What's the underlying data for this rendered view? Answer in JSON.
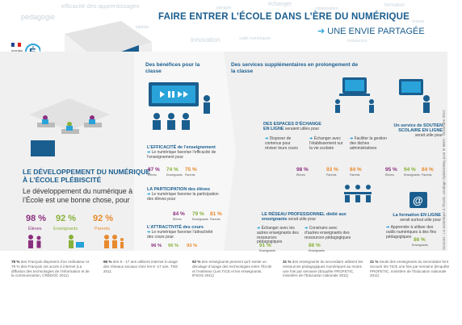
{
  "cloud_words": [
    "pédagogie",
    "efficacité des apprentissages",
    "échanger",
    "partager",
    "formation",
    "innovation",
    "outils numériques",
    "tablette",
    "réseau",
    "collaboration",
    "projets",
    "ressources"
  ],
  "header": {
    "title": "FAIRE ENTRER L’ÉCOLE DANS L’ÈRE DU NUMÉRIQUE",
    "subtitle": "UNE ENVIE PARTAGÉE",
    "logo_text": "MINISTÈRE ÉDUCATION NATIONALE"
  },
  "left": {
    "title_line1": "LE DÉVELOPPEMENT DU NUMÉRIQUE",
    "title_line2": "À L’ÉCOLE PLÉBISCITÉ",
    "subtitle": "Le développement du numérique à l’École est une bonne chose, pour",
    "stats": [
      {
        "value": "98 %",
        "label": "Élèves"
      },
      {
        "value": "92 %",
        "label": "Enseignants"
      },
      {
        "value": "92 %",
        "label": "Parents"
      }
    ]
  },
  "benefits": {
    "title": "Des bénéfices pour la classe",
    "efficacy": {
      "heading": "L’EFFICACITÉ de l’enseignement",
      "text": "Le numérique favorise l’efficacité de l’enseignement pour",
      "stats": [
        {
          "value": "87 %",
          "label": "Élèves"
        },
        {
          "value": "74 %",
          "label": "Enseignants"
        },
        {
          "value": "75 %",
          "label": "Parents"
        }
      ]
    },
    "participation": {
      "heading": "LA PARTICIPATION des élèves",
      "text": "Le numérique favorise la participation des élèves pour",
      "stats": [
        {
          "value": "84 %",
          "label": "Élèves"
        },
        {
          "value": "79 %",
          "label": "Enseignants"
        },
        {
          "value": "81 %",
          "label": "Parents"
        }
      ]
    },
    "attractivity": {
      "heading": "L’ATTRACTIVITÉ des cours",
      "text": "Le numérique favorise l’attractivité des cours pour",
      "stats": [
        {
          "value": "96 %",
          "label": "Élèves"
        },
        {
          "value": "95 %",
          "label": "Enseignants"
        },
        {
          "value": "93 %",
          "label": "Parents"
        }
      ]
    }
  },
  "services": {
    "title": "Des services supplémentaires en prolongement de la classe",
    "exchange": {
      "heading": "DES ESPACES D’ÉCHANGE EN LIGNE",
      "intro": "seraient utiles pour",
      "items": [
        {
          "text": "Disposer de contenus pour réviser leurs cours",
          "value": "98 %",
          "label": "Élèves"
        },
        {
          "text": "Échanger avec l’établissement sur la vie scolaire",
          "value": "93 %",
          "label": "Parents"
        },
        {
          "text": "Faciliter la gestion des tâches administratives",
          "value": "84 %",
          "label": "Parents"
        }
      ]
    },
    "tutoring": {
      "heading": "Un service de SOUTIEN SCOLAIRE EN LIGNE",
      "intro": "serait utile pour",
      "stats": [
        {
          "value": "95 %",
          "label": "Élèves"
        },
        {
          "value": "94 %",
          "label": "Enseignants"
        },
        {
          "value": "84 %",
          "label": "Parents"
        }
      ]
    },
    "network": {
      "heading": "LE RÉSEAU PROFESSIONNEL dédié aux enseignants",
      "intro": "serait utile pour",
      "items": [
        {
          "text": "Échanger avec les autres enseignants des ressources pédagogiques",
          "value": "91 %",
          "label": "Enseignants"
        },
        {
          "text": "Construire avec d’autres enseignants des ressources pédagogiques",
          "value": "86 %",
          "label": "Enseignants"
        }
      ]
    },
    "training": {
      "heading": "La formation EN LIGNE",
      "intro": "serait surtout utile pour",
      "item": "Apprendre à utiliser des outils numériques à des fins pédagogiques",
      "value": "86 %",
      "label": "Enseignants"
    }
  },
  "footer": [
    {
      "bold": "78 %",
      "text": "des Français disposent d’un ordinateur et 79 % des Français ont accès à internet (La diffusion des technologies de l’information et de la communication, CRÉDOC 2011)"
    },
    {
      "bold": "96 %",
      "text": "des 8 - 17 ans utilisent internet à usage des réseaux sociaux chez les 8 -17 ans, TNS 2011"
    },
    {
      "bold": "92 %",
      "text": "des enseignants pensent qu’il existe un décalage d’usage des technologies entre l’École et l’extérieur (Les TICE et les enseignants, IPSOS 2011)"
    },
    {
      "bold": "31 %",
      "text": "des enseignants du secondaire utilisent les ressources pédagogiques numériques au moins une fois par semaine (Enquête PROFETIC, ministère de l’Éducation nationale 2011)"
    },
    {
      "bold": "21 %",
      "text": "Seuls des enseignants du secondaire font recourir les TICE une fois par semaine (Enquête PROFETIC, ministère de l’Éducation nationale 2011)"
    }
  ],
  "side_note": "Sources : Le numérique à l’École, sondage OpinionWay pour le MEN - Novembre 2012",
  "colors": {
    "blue": "#1a5e8f",
    "light_blue": "#29a3d9",
    "violet": "#8b2f7f",
    "green": "#88b13a",
    "orange": "#e88a2e"
  }
}
